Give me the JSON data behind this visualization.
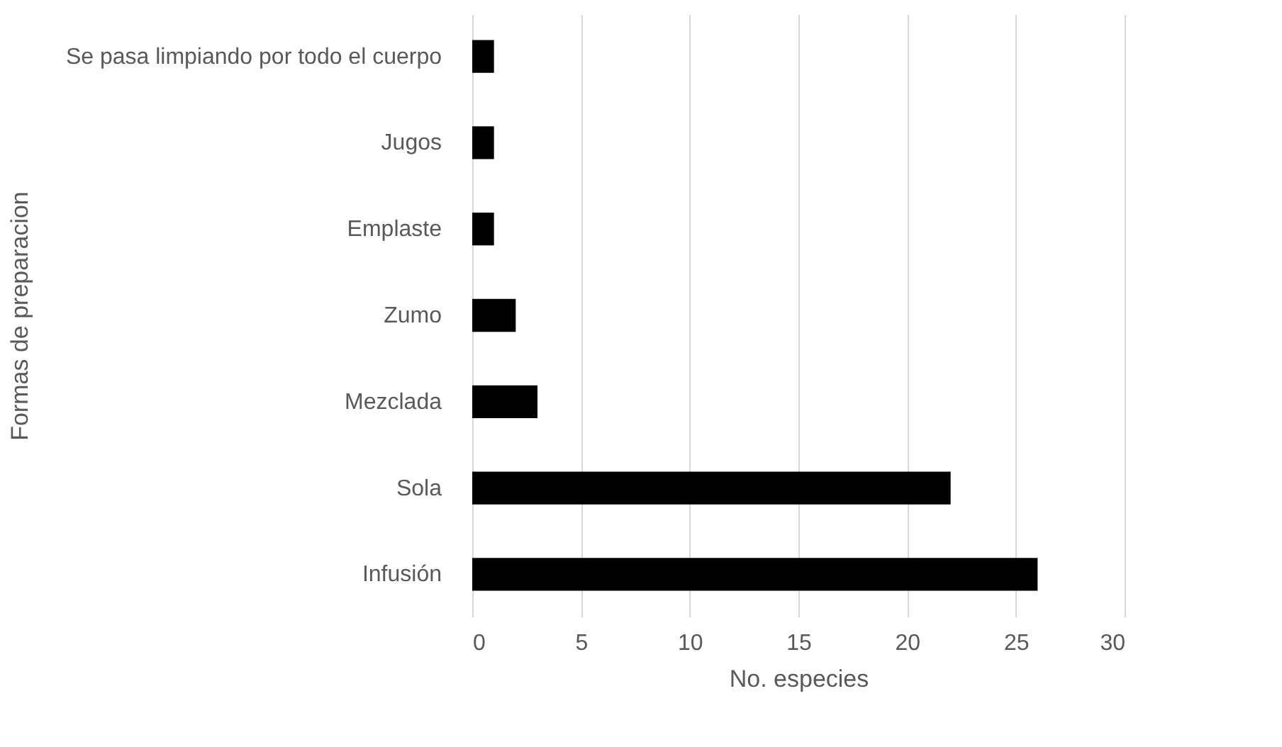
{
  "chart_data": {
    "type": "bar",
    "orientation": "horizontal",
    "categories": [
      "Se pasa limpiando por todo el cuerpo",
      "Jugos",
      "Emplaste ",
      "Zumo",
      "Mezclada",
      "Sola",
      "Infusión"
    ],
    "values": [
      1,
      1,
      1,
      2,
      3,
      22,
      26
    ],
    "color": "#000000",
    "xlim": [
      0,
      30
    ],
    "xticks": [
      0,
      5,
      10,
      15,
      20,
      25,
      30
    ],
    "xlabel": "No. especies",
    "ylabel": "Formas de preparacion",
    "grid": "x"
  }
}
